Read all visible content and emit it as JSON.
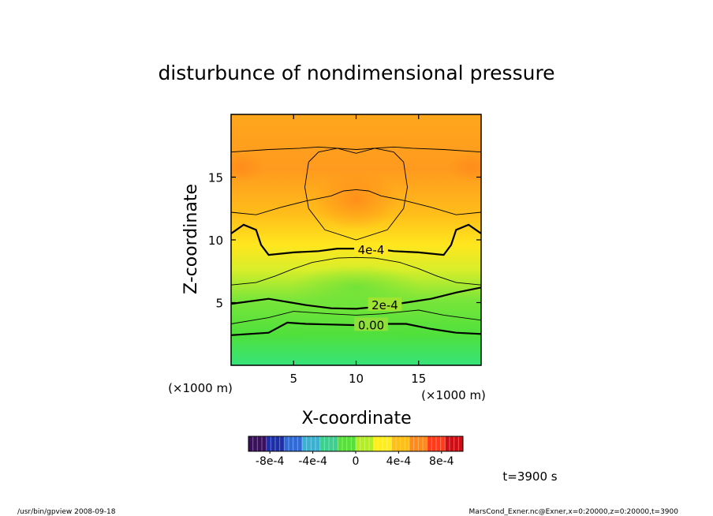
{
  "chart_data": {
    "type": "contour",
    "title": "disturbunce of nondimensional pressure",
    "xlabel": "X-coordinate",
    "ylabel": "Z-coordinate",
    "x_unit": "(×1000 m)",
    "y_unit": "(×1000 m)",
    "xlim": [
      0,
      20
    ],
    "ylim": [
      0,
      20
    ],
    "x_ticks": [
      5,
      10,
      15
    ],
    "y_ticks": [
      5,
      10,
      15
    ],
    "color_scale": {
      "min": -0.001,
      "max": 0.001,
      "tick_labels": [
        "-8e-4",
        "-4e-4",
        "0",
        "4e-4",
        "8e-4"
      ],
      "tick_values": [
        -0.0008,
        -0.0004,
        0,
        0.0004,
        0.0008
      ],
      "colors": [
        "#3a0f5e",
        "#1d2fa8",
        "#2f6ad6",
        "#39b2d2",
        "#3ccf8e",
        "#58e03a",
        "#b3ee22",
        "#ffed1c",
        "#ffbf17",
        "#ff8a1a",
        "#ff3b1a",
        "#cf0d14"
      ]
    },
    "contour_lines": [
      {
        "value": 0.0,
        "label": "0.00",
        "major": true,
        "points": [
          [
            0,
            2.4
          ],
          [
            3,
            2.6
          ],
          [
            4.5,
            3.4
          ],
          [
            6,
            3.3
          ],
          [
            8,
            3.25
          ],
          [
            10,
            3.2
          ],
          [
            12,
            3.3
          ],
          [
            14,
            3.3
          ],
          [
            16,
            2.9
          ],
          [
            18,
            2.6
          ],
          [
            20,
            2.5
          ]
        ]
      },
      {
        "value": 0.0001,
        "label": "",
        "major": false,
        "points": [
          [
            0,
            3.3
          ],
          [
            3,
            3.8
          ],
          [
            5,
            4.3
          ],
          [
            8,
            4.1
          ],
          [
            10,
            4.0
          ],
          [
            12,
            4.1
          ],
          [
            15,
            4.4
          ],
          [
            17,
            4.0
          ],
          [
            20,
            3.6
          ]
        ]
      },
      {
        "value": 0.0002,
        "label": "2e-4",
        "major": true,
        "points": [
          [
            0,
            4.9
          ],
          [
            3,
            5.3
          ],
          [
            6,
            4.8
          ],
          [
            8,
            4.55
          ],
          [
            10,
            4.5
          ],
          [
            12,
            4.7
          ],
          [
            14,
            5.0
          ],
          [
            16,
            5.3
          ],
          [
            18,
            5.8
          ],
          [
            20,
            6.2
          ]
        ]
      },
      {
        "value": 0.0003,
        "label": "",
        "major": false,
        "points": [
          [
            0,
            6.4
          ],
          [
            2,
            6.6
          ],
          [
            3.5,
            7.1
          ],
          [
            5,
            7.7
          ],
          [
            6.5,
            8.2
          ],
          [
            8.5,
            8.55
          ],
          [
            10,
            8.6
          ],
          [
            11.5,
            8.55
          ],
          [
            13.5,
            8.2
          ],
          [
            15,
            7.7
          ],
          [
            16.5,
            7.1
          ],
          [
            18,
            6.6
          ],
          [
            20,
            6.4
          ]
        ]
      },
      {
        "value": 0.0004,
        "label": "4e-4",
        "major": true,
        "points": [
          [
            0,
            10.5
          ],
          [
            1,
            11.2
          ],
          [
            2,
            10.8
          ],
          [
            2.4,
            9.6
          ],
          [
            3,
            8.8
          ],
          [
            5,
            9.0
          ],
          [
            7,
            9.1
          ],
          [
            8.5,
            9.3
          ],
          [
            11.5,
            9.3
          ],
          [
            13,
            9.1
          ],
          [
            15,
            9.0
          ],
          [
            17,
            8.8
          ],
          [
            17.6,
            9.6
          ],
          [
            18,
            10.8
          ],
          [
            19,
            11.2
          ],
          [
            20,
            10.5
          ]
        ]
      },
      {
        "value": 0.0005,
        "label": "",
        "major": false,
        "points": [
          [
            0,
            12.2
          ],
          [
            2,
            12.0
          ],
          [
            4,
            12.6
          ],
          [
            6,
            13.1
          ],
          [
            8,
            13.5
          ],
          [
            9,
            13.9
          ],
          [
            10,
            14.0
          ],
          [
            11,
            13.9
          ],
          [
            12,
            13.5
          ],
          [
            14,
            13.1
          ],
          [
            16,
            12.6
          ],
          [
            18,
            12.0
          ],
          [
            20,
            12.2
          ]
        ]
      },
      {
        "value": 0.0006,
        "label": "",
        "major": false,
        "points": [
          [
            0,
            17.0
          ],
          [
            3,
            17.2
          ],
          [
            5.5,
            17.3
          ],
          [
            7,
            17.4
          ],
          [
            10,
            17.2
          ],
          [
            13,
            17.4
          ],
          [
            14.5,
            17.3
          ],
          [
            17,
            17.2
          ],
          [
            20,
            17.0
          ]
        ]
      },
      {
        "value": 0.0007,
        "label": "",
        "major": false,
        "points": [
          [
            6.2,
            12.5
          ],
          [
            5.9,
            14.2
          ],
          [
            6.2,
            16.2
          ],
          [
            7,
            17.0
          ],
          [
            8.5,
            17.3
          ],
          [
            10,
            16.9
          ],
          [
            11.5,
            17.3
          ],
          [
            13,
            17.0
          ],
          [
            13.8,
            16.2
          ],
          [
            14.1,
            14.2
          ],
          [
            13.8,
            12.5
          ],
          [
            12.5,
            10.8
          ],
          [
            10,
            10.0
          ],
          [
            7.5,
            10.8
          ],
          [
            6.2,
            12.5
          ]
        ]
      }
    ],
    "time_label": "t=3900 s",
    "footer_left": "/usr/bin/gpview   2008-09-18",
    "footer_right": "MarsCond_Exner.nc@Exner,x=0:20000,z=0:20000,t=3900"
  }
}
